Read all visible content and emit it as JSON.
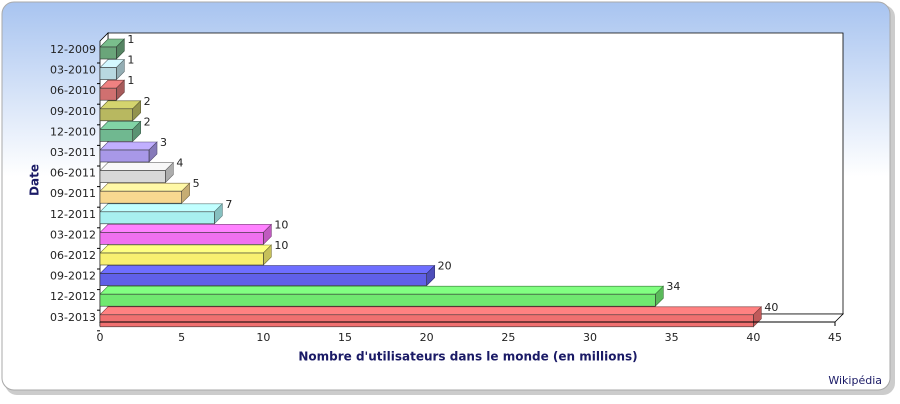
{
  "chart_data": {
    "type": "bar3d",
    "orientation": "horizontal",
    "x_label": "Nombre d'utilisateurs dans le monde (en millions)",
    "y_label": "Date",
    "credit": "Wikipédia",
    "categories": [
      "12-2009",
      "03-2010",
      "06-2010",
      "09-2010",
      "12-2010",
      "03-2011",
      "06-2011",
      "09-2011",
      "12-2011",
      "03-2012",
      "06-2012",
      "09-2012",
      "12-2012",
      "03-2013"
    ],
    "values": [
      1,
      1,
      1,
      2,
      2,
      3,
      4,
      5,
      7,
      10,
      10,
      20,
      34,
      40
    ],
    "colors": [
      "#6aa57a",
      "#b8d8e0",
      "#d07070",
      "#b8b860",
      "#70b890",
      "#a898e8",
      "#d8d8d8",
      "#f8d890",
      "#a8f0f0",
      "#f070f0",
      "#f8f070",
      "#6060e8",
      "#70e870",
      "#f07070"
    ],
    "xlim": [
      0,
      45
    ],
    "xticks": [
      0,
      5,
      10,
      15,
      20,
      25,
      30,
      35,
      40,
      45
    ]
  }
}
